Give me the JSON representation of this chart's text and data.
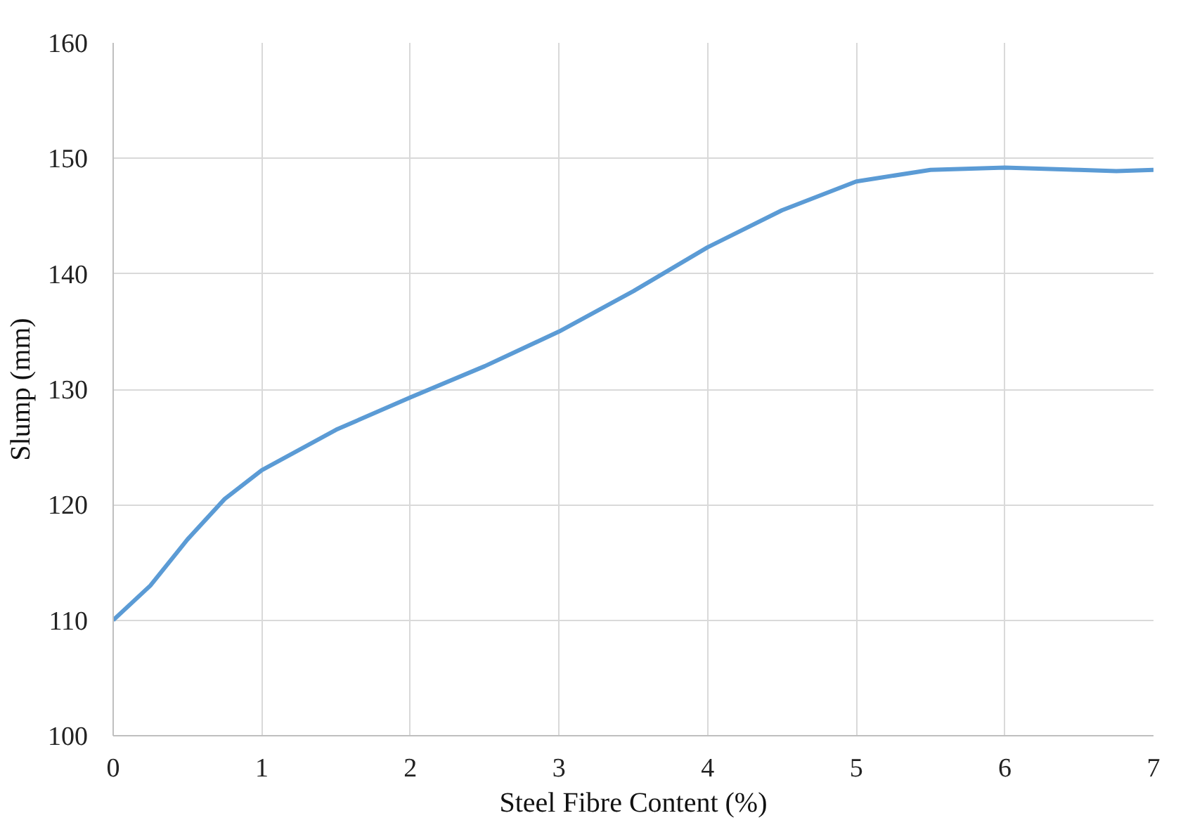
{
  "chart_data": {
    "type": "line",
    "xlabel": "Steel Fibre Content (%)",
    "ylabel": "Slump (mm)",
    "x": [
      0,
      0.25,
      0.5,
      0.75,
      1,
      1.5,
      2,
      2.5,
      3,
      3.5,
      4,
      4.5,
      5,
      5.5,
      6,
      6.5,
      6.75,
      7
    ],
    "series": [
      {
        "color": "#5b9bd5",
        "values": [
          110,
          113,
          117,
          120.5,
          123,
          126.5,
          129.3,
          132,
          135,
          138.5,
          142.3,
          145.5,
          148,
          149,
          149.2,
          149,
          148.9,
          149
        ]
      }
    ],
    "xlim": [
      0,
      7
    ],
    "xticks": [
      0,
      1,
      2,
      3,
      4,
      5,
      6,
      7
    ],
    "ylim": [
      100,
      160
    ],
    "yticks": [
      100,
      110,
      120,
      130,
      140,
      150,
      160
    ],
    "grid": true,
    "marker": "none",
    "line_style": "solid"
  }
}
